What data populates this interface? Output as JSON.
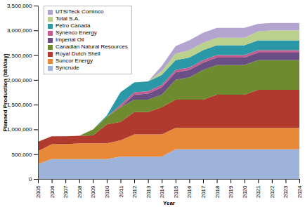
{
  "chart_data": {
    "type": "area",
    "stacked": true,
    "x_label": "Year",
    "y_label": "Planned Production (bbl/day)",
    "x": [
      2005,
      2006,
      2007,
      2008,
      2009,
      2010,
      2011,
      2012,
      2013,
      2014,
      2015,
      2016,
      2017,
      2018,
      2019,
      2020,
      2021,
      2022,
      2023,
      2024
    ],
    "xlim": [
      2005,
      2024
    ],
    "xticks": [
      2005,
      2006,
      2007,
      2008,
      2009,
      2010,
      2011,
      2012,
      2013,
      2014,
      2015,
      2016,
      2017,
      2018,
      2019,
      2020,
      2021,
      2022,
      2023,
      2024
    ],
    "ylim": [
      0,
      3500000
    ],
    "yticks": [
      0,
      {
        "value": 500000,
        "label": "500,000"
      },
      {
        "value": 1000000,
        "label": "1,000,000"
      },
      {
        "value": 1500000,
        "label": "1,500,000"
      },
      {
        "value": 2000000,
        "label": "2,000,000"
      },
      {
        "value": 2500000,
        "label": "2,500,000"
      },
      {
        "value": 3000000,
        "label": "3,000,000"
      },
      {
        "value": 3500000,
        "label": "3,500,000"
      }
    ],
    "legend": "top-left",
    "series": [
      {
        "name": "Syncrude",
        "color": "#9db3da",
        "values": [
          300000,
          400000,
          400000,
          400000,
          400000,
          400000,
          450000,
          450000,
          450000,
          450000,
          600000,
          600000,
          600000,
          600000,
          600000,
          600000,
          600000,
          600000,
          600000,
          600000
        ]
      },
      {
        "name": "Suncor Energy",
        "color": "#e8893a",
        "values": [
          260000,
          300000,
          300000,
          320000,
          320000,
          320000,
          330000,
          450000,
          450000,
          450000,
          430000,
          430000,
          430000,
          430000,
          430000,
          430000,
          430000,
          430000,
          430000,
          430000
        ]
      },
      {
        "name": "Royal Dutch Shell",
        "color": "#b03a2e",
        "values": [
          190000,
          160000,
          160000,
          150000,
          160000,
          380000,
          370000,
          450000,
          450000,
          550000,
          570000,
          570000,
          570000,
          670000,
          670000,
          670000,
          770000,
          770000,
          770000,
          770000
        ]
      },
      {
        "name": "Canadian Natural Resources",
        "color": "#6f8b2f",
        "values": [
          0,
          0,
          0,
          0,
          120000,
          150000,
          300000,
          250000,
          250000,
          250000,
          400000,
          450000,
          600000,
          600000,
          600000,
          600000,
          600000,
          600000,
          600000,
          600000
        ]
      },
      {
        "name": "Imperial Oil",
        "color": "#6a4f86",
        "values": [
          0,
          0,
          0,
          0,
          0,
          0,
          0,
          100000,
          120000,
          150000,
          150000,
          150000,
          150000,
          150000,
          150000,
          150000,
          150000,
          150000,
          150000,
          150000
        ]
      },
      {
        "name": "Synenco Energy",
        "color": "#c45d8e",
        "values": [
          0,
          0,
          0,
          0,
          0,
          0,
          50000,
          50000,
          50000,
          50000,
          50000,
          50000,
          50000,
          50000,
          50000,
          50000,
          50000,
          50000,
          50000,
          50000
        ]
      },
      {
        "name": "Petro Canada",
        "color": "#2b98a8",
        "values": [
          0,
          0,
          0,
          0,
          0,
          30000,
          250000,
          200000,
          200000,
          200000,
          200000,
          200000,
          200000,
          200000,
          200000,
          200000,
          200000,
          200000,
          200000,
          200000
        ]
      },
      {
        "name": "Total S.A.",
        "color": "#b9d18c",
        "values": [
          0,
          0,
          0,
          0,
          0,
          0,
          0,
          0,
          0,
          80000,
          130000,
          150000,
          150000,
          150000,
          150000,
          150000,
          180000,
          200000,
          200000,
          200000
        ]
      },
      {
        "name": "UTS/Teck Cominco",
        "color": "#b3a3cf",
        "values": [
          0,
          0,
          0,
          0,
          0,
          0,
          0,
          0,
          0,
          100000,
          150000,
          200000,
          200000,
          200000,
          200000,
          200000,
          150000,
          150000,
          150000,
          150000
        ]
      }
    ]
  }
}
